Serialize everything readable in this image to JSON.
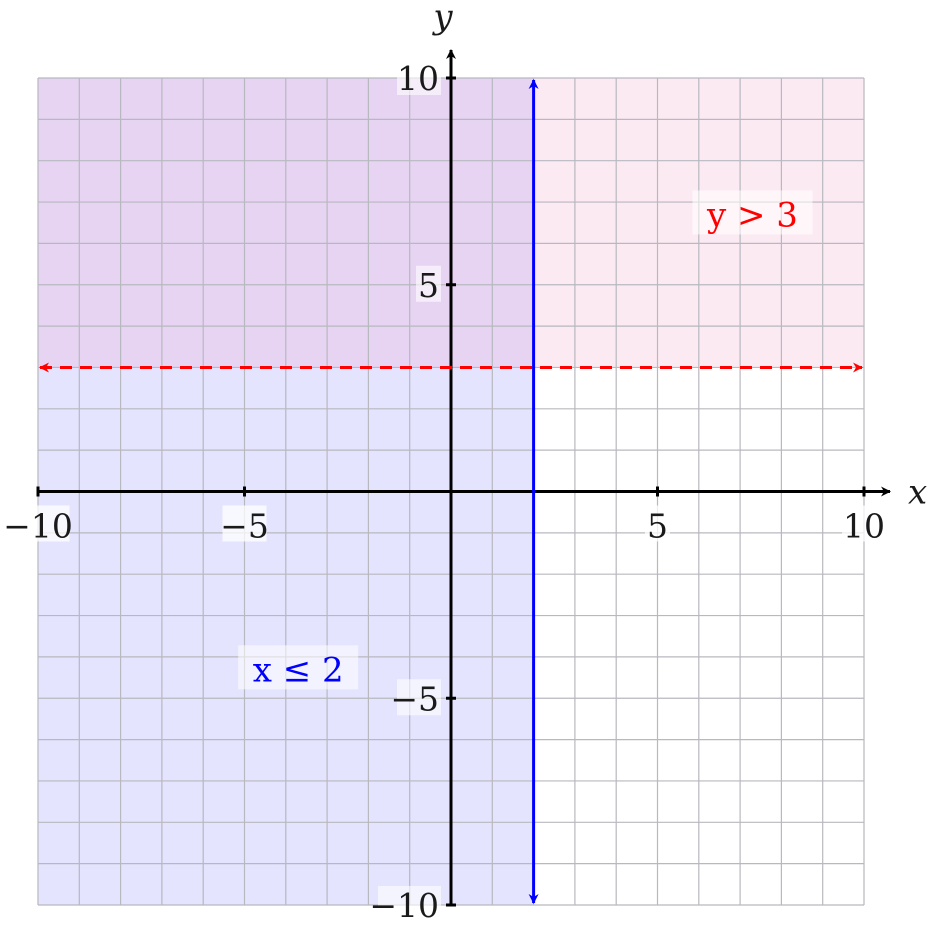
{
  "chart_data": {
    "type": "inequality-region-plot",
    "xlabel": "x",
    "ylabel": "y",
    "xlim": [
      -10,
      10
    ],
    "ylim": [
      -10,
      10
    ],
    "grid": true,
    "grid_step": 1,
    "x_ticks": [
      {
        "value": -10,
        "label": "−10"
      },
      {
        "value": -5,
        "label": "−5"
      },
      {
        "value": 5,
        "label": "5"
      },
      {
        "value": 10,
        "label": "10"
      }
    ],
    "y_ticks": [
      {
        "value": 10,
        "label": "10"
      },
      {
        "value": 5,
        "label": "5"
      },
      {
        "value": -5,
        "label": "−5"
      },
      {
        "value": -10,
        "label": "−10"
      }
    ],
    "inequalities": [
      {
        "label": "x ≤ 2",
        "boundary": {
          "orientation": "vertical",
          "value": 2,
          "style": "solid"
        },
        "shade": "x <= 2",
        "color": "#0000ff",
        "fill": "#6a6aff",
        "fill_opacity": 0.18,
        "label_position": {
          "x": -3.7,
          "y": -4.3
        }
      },
      {
        "label": "y > 3",
        "boundary": {
          "orientation": "horizontal",
          "value": 3,
          "style": "dashed"
        },
        "shade": "y > 3",
        "color": "#ff0000",
        "fill": "#f08ab5",
        "fill_opacity": 0.18,
        "label_position": {
          "x": 7.3,
          "y": 6.7
        }
      }
    ]
  }
}
